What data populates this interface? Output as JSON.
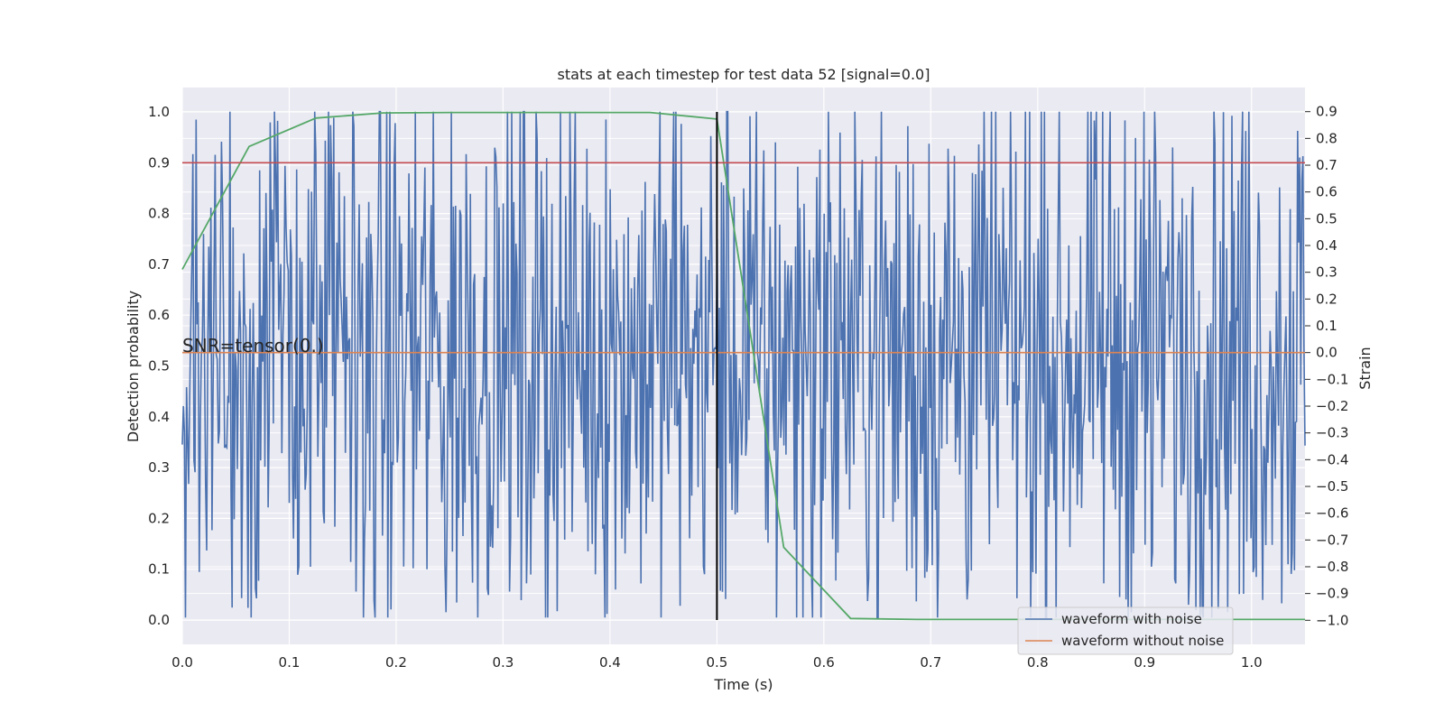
{
  "chart_data": {
    "type": "line",
    "title": "stats at each timestep for test data 52 [signal=0.0]",
    "xlabel": "Time (s)",
    "ylabel": "Detection probability",
    "y2label": "Strain",
    "xlim": [
      0.0,
      1.05
    ],
    "ylim": [
      -0.048,
      1.048
    ],
    "y2lim": [
      -1.09,
      0.99
    ],
    "xticks": [
      "0.0",
      "0.1",
      "0.2",
      "0.3",
      "0.4",
      "0.5",
      "0.6",
      "0.7",
      "0.8",
      "0.9",
      "1.0"
    ],
    "yticks": [
      "0.0",
      "0.1",
      "0.2",
      "0.3",
      "0.4",
      "0.5",
      "0.6",
      "0.7",
      "0.8",
      "0.9",
      "1.0"
    ],
    "y2ticks": [
      "−1.0",
      "−0.9",
      "−0.8",
      "−0.7",
      "−0.6",
      "−0.5",
      "−0.4",
      "−0.3",
      "−0.2",
      "−0.1",
      "0.0",
      "0.1",
      "0.2",
      "0.3",
      "0.4",
      "0.5",
      "0.6",
      "0.7",
      "0.8",
      "0.9"
    ],
    "grid": true,
    "legend_position": "lower-right",
    "annotation": "SNR=tensor(0.)",
    "threshold": {
      "y": 0.9,
      "color": "#c44e52"
    },
    "vertical_marker": {
      "x": 0.5,
      "y_from": 0.0,
      "y_to": 1.0,
      "color": "#000000"
    },
    "series": [
      {
        "name": "waveform with noise",
        "axis": "right",
        "color": "#4c72b0",
        "noise": true,
        "value_range": [
          -0.99,
          0.9
        ],
        "note_peaks": [
          [
            0.082,
            0.86
          ],
          [
            0.125,
            0.75
          ],
          [
            0.698,
            0.78
          ],
          [
            0.966,
            0.78
          ],
          [
            0.395,
            -0.99
          ],
          [
            0.247,
            -0.97
          ],
          [
            1.002,
            -0.8
          ],
          [
            0.12,
            -0.8
          ]
        ]
      },
      {
        "name": "waveform without noise",
        "axis": "right",
        "color": "#dd8452",
        "x": [
          0.0,
          1.05
        ],
        "values": [
          0.0,
          0.0
        ]
      },
      {
        "axis": "left",
        "color": "#55a868",
        "x": [
          0.0,
          0.0625,
          0.125,
          0.1875,
          0.25,
          0.3125,
          0.375,
          0.4375,
          0.5,
          0.5625,
          0.625,
          0.6875,
          0.75,
          0.8125,
          0.875,
          0.9375,
          1.0,
          1.05
        ],
        "values": [
          0.69,
          0.932,
          0.988,
          0.998,
          0.999,
          0.999,
          0.999,
          0.999,
          0.986,
          0.143,
          0.003,
          0.001,
          0.001,
          0.001,
          0.001,
          0.001,
          0.001,
          0.001
        ]
      }
    ]
  }
}
